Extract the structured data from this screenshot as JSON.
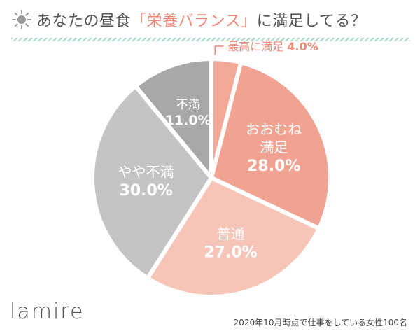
{
  "title": {
    "prefix": "あなたの昼食",
    "highlight": "「栄養バランス」",
    "suffix": "に満足してる？"
  },
  "icon": "sun-icon",
  "colors": {
    "title_text": "#555555",
    "title_highlight": "#ee8877",
    "divider": "#a8dcc8",
    "label_dark": "#ffffff",
    "label_light": "#ffffff",
    "outside_label": "#ee8877"
  },
  "chart_data": {
    "type": "pie",
    "title": "あなたの昼食「栄養バランス」に満足してる？",
    "unit": "%",
    "slices": [
      {
        "name": "最高に満足",
        "value": 4.0,
        "display": "4.0%",
        "color": "#f4a898"
      },
      {
        "name": "おおむね満足",
        "value": 28.0,
        "display": "28.0%",
        "color": "#f2a291"
      },
      {
        "name": "普通",
        "value": 27.0,
        "display": "27.0%",
        "color": "#f7c4b8"
      },
      {
        "name": "やや不満",
        "value": 30.0,
        "display": "30.0%",
        "color": "#c4c4c4"
      },
      {
        "name": "不満",
        "value": 11.0,
        "display": "11.0%",
        "color": "#a8a8a8"
      }
    ]
  },
  "brand": "lamire",
  "footnote": "2020年10月時点で仕事をしている女性100名"
}
